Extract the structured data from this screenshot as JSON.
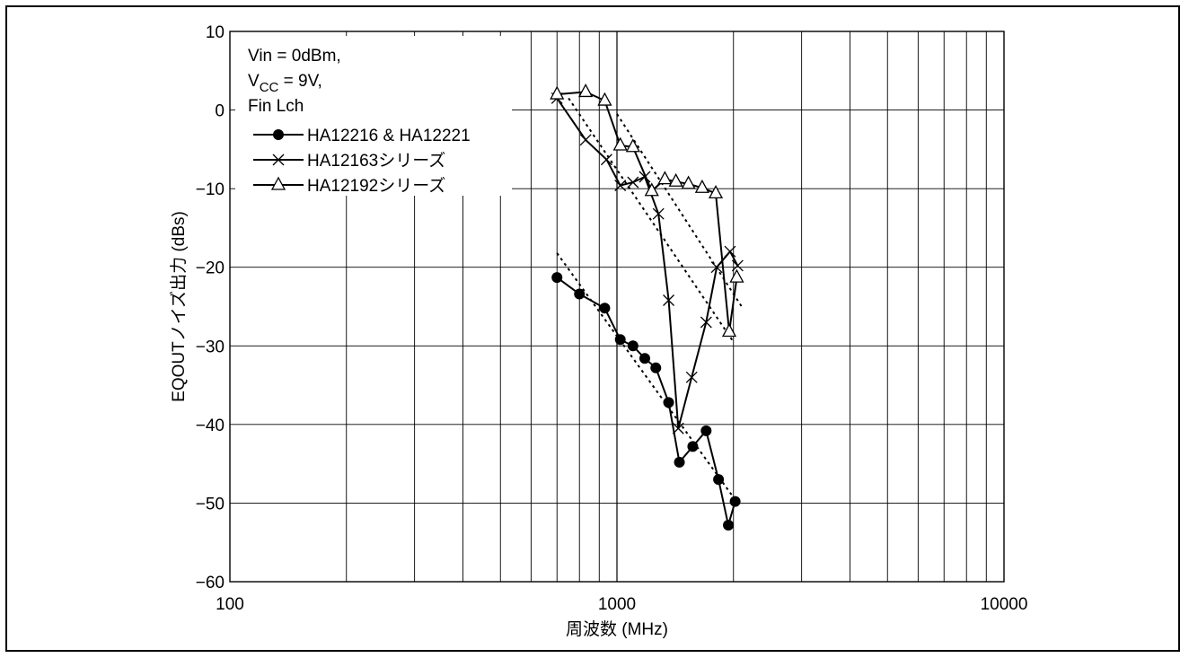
{
  "chart_data": {
    "type": "line",
    "xscale": "log",
    "xlim": [
      100,
      10000
    ],
    "ylim": [
      -60,
      10
    ],
    "xlabel": "周波数 (MHz)",
    "ylabel": "EQOUTノイズ出力 (dBs)",
    "x_ticks": [
      "100",
      "1000",
      "10000"
    ],
    "y_ticks": [
      "10",
      "0",
      "−10",
      "−20",
      "−30",
      "−40",
      "−50",
      "−60"
    ],
    "grid": true,
    "annotation": {
      "line1": "Vin = 0dBm,",
      "line2_prefix": "V",
      "line2_sub": "CC",
      "line2_suffix": " = 9V,",
      "line3": "Fin Lch"
    },
    "legend_position": "top-left",
    "series": [
      {
        "name": "HA12216 & HA12221",
        "marker": "filled-circle",
        "points": [
          [
            700,
            -21.3
          ],
          [
            800,
            -23.4
          ],
          [
            930,
            -25.2
          ],
          [
            1020,
            -29.2
          ],
          [
            1100,
            -30
          ],
          [
            1180,
            -31.6
          ],
          [
            1260,
            -32.8
          ],
          [
            1360,
            -37.2
          ],
          [
            1450,
            -44.8
          ],
          [
            1570,
            -42.8
          ],
          [
            1700,
            -40.8
          ],
          [
            1830,
            -47
          ],
          [
            1940,
            -52.8
          ],
          [
            2020,
            -49.8
          ]
        ],
        "trend": [
          [
            700,
            -18.2
          ],
          [
            2050,
            -50
          ]
        ]
      },
      {
        "name": "HA12163シリーズ",
        "marker": "x",
        "points": [
          [
            700,
            1.5
          ],
          [
            830,
            -3.8
          ],
          [
            940,
            -6.3
          ],
          [
            1020,
            -9.6
          ],
          [
            1100,
            -9.2
          ],
          [
            1180,
            -8.5
          ],
          [
            1280,
            -13.2
          ],
          [
            1360,
            -24.2
          ],
          [
            1440,
            -40.5
          ],
          [
            1560,
            -34
          ],
          [
            1700,
            -27
          ],
          [
            1810,
            -20
          ],
          [
            1960,
            -18
          ],
          [
            2050,
            -19.8
          ]
        ],
        "trend": [
          [
            750,
            1.5
          ],
          [
            2000,
            -29.5
          ]
        ]
      },
      {
        "name": "HA12192シリーズ",
        "marker": "open-triangle",
        "points": [
          [
            700,
            2
          ],
          [
            830,
            2.3
          ],
          [
            930,
            1.2
          ],
          [
            1020,
            -4.5
          ],
          [
            1100,
            -4.7
          ],
          [
            1230,
            -10.3
          ],
          [
            1330,
            -8.8
          ],
          [
            1420,
            -9.1
          ],
          [
            1530,
            -9.4
          ],
          [
            1660,
            -9.9
          ],
          [
            1800,
            -10.6
          ],
          [
            1950,
            -28.2
          ],
          [
            2040,
            -21.3
          ]
        ],
        "trend": [
          [
            1000,
            -0.5
          ],
          [
            2100,
            -25
          ]
        ]
      }
    ]
  }
}
